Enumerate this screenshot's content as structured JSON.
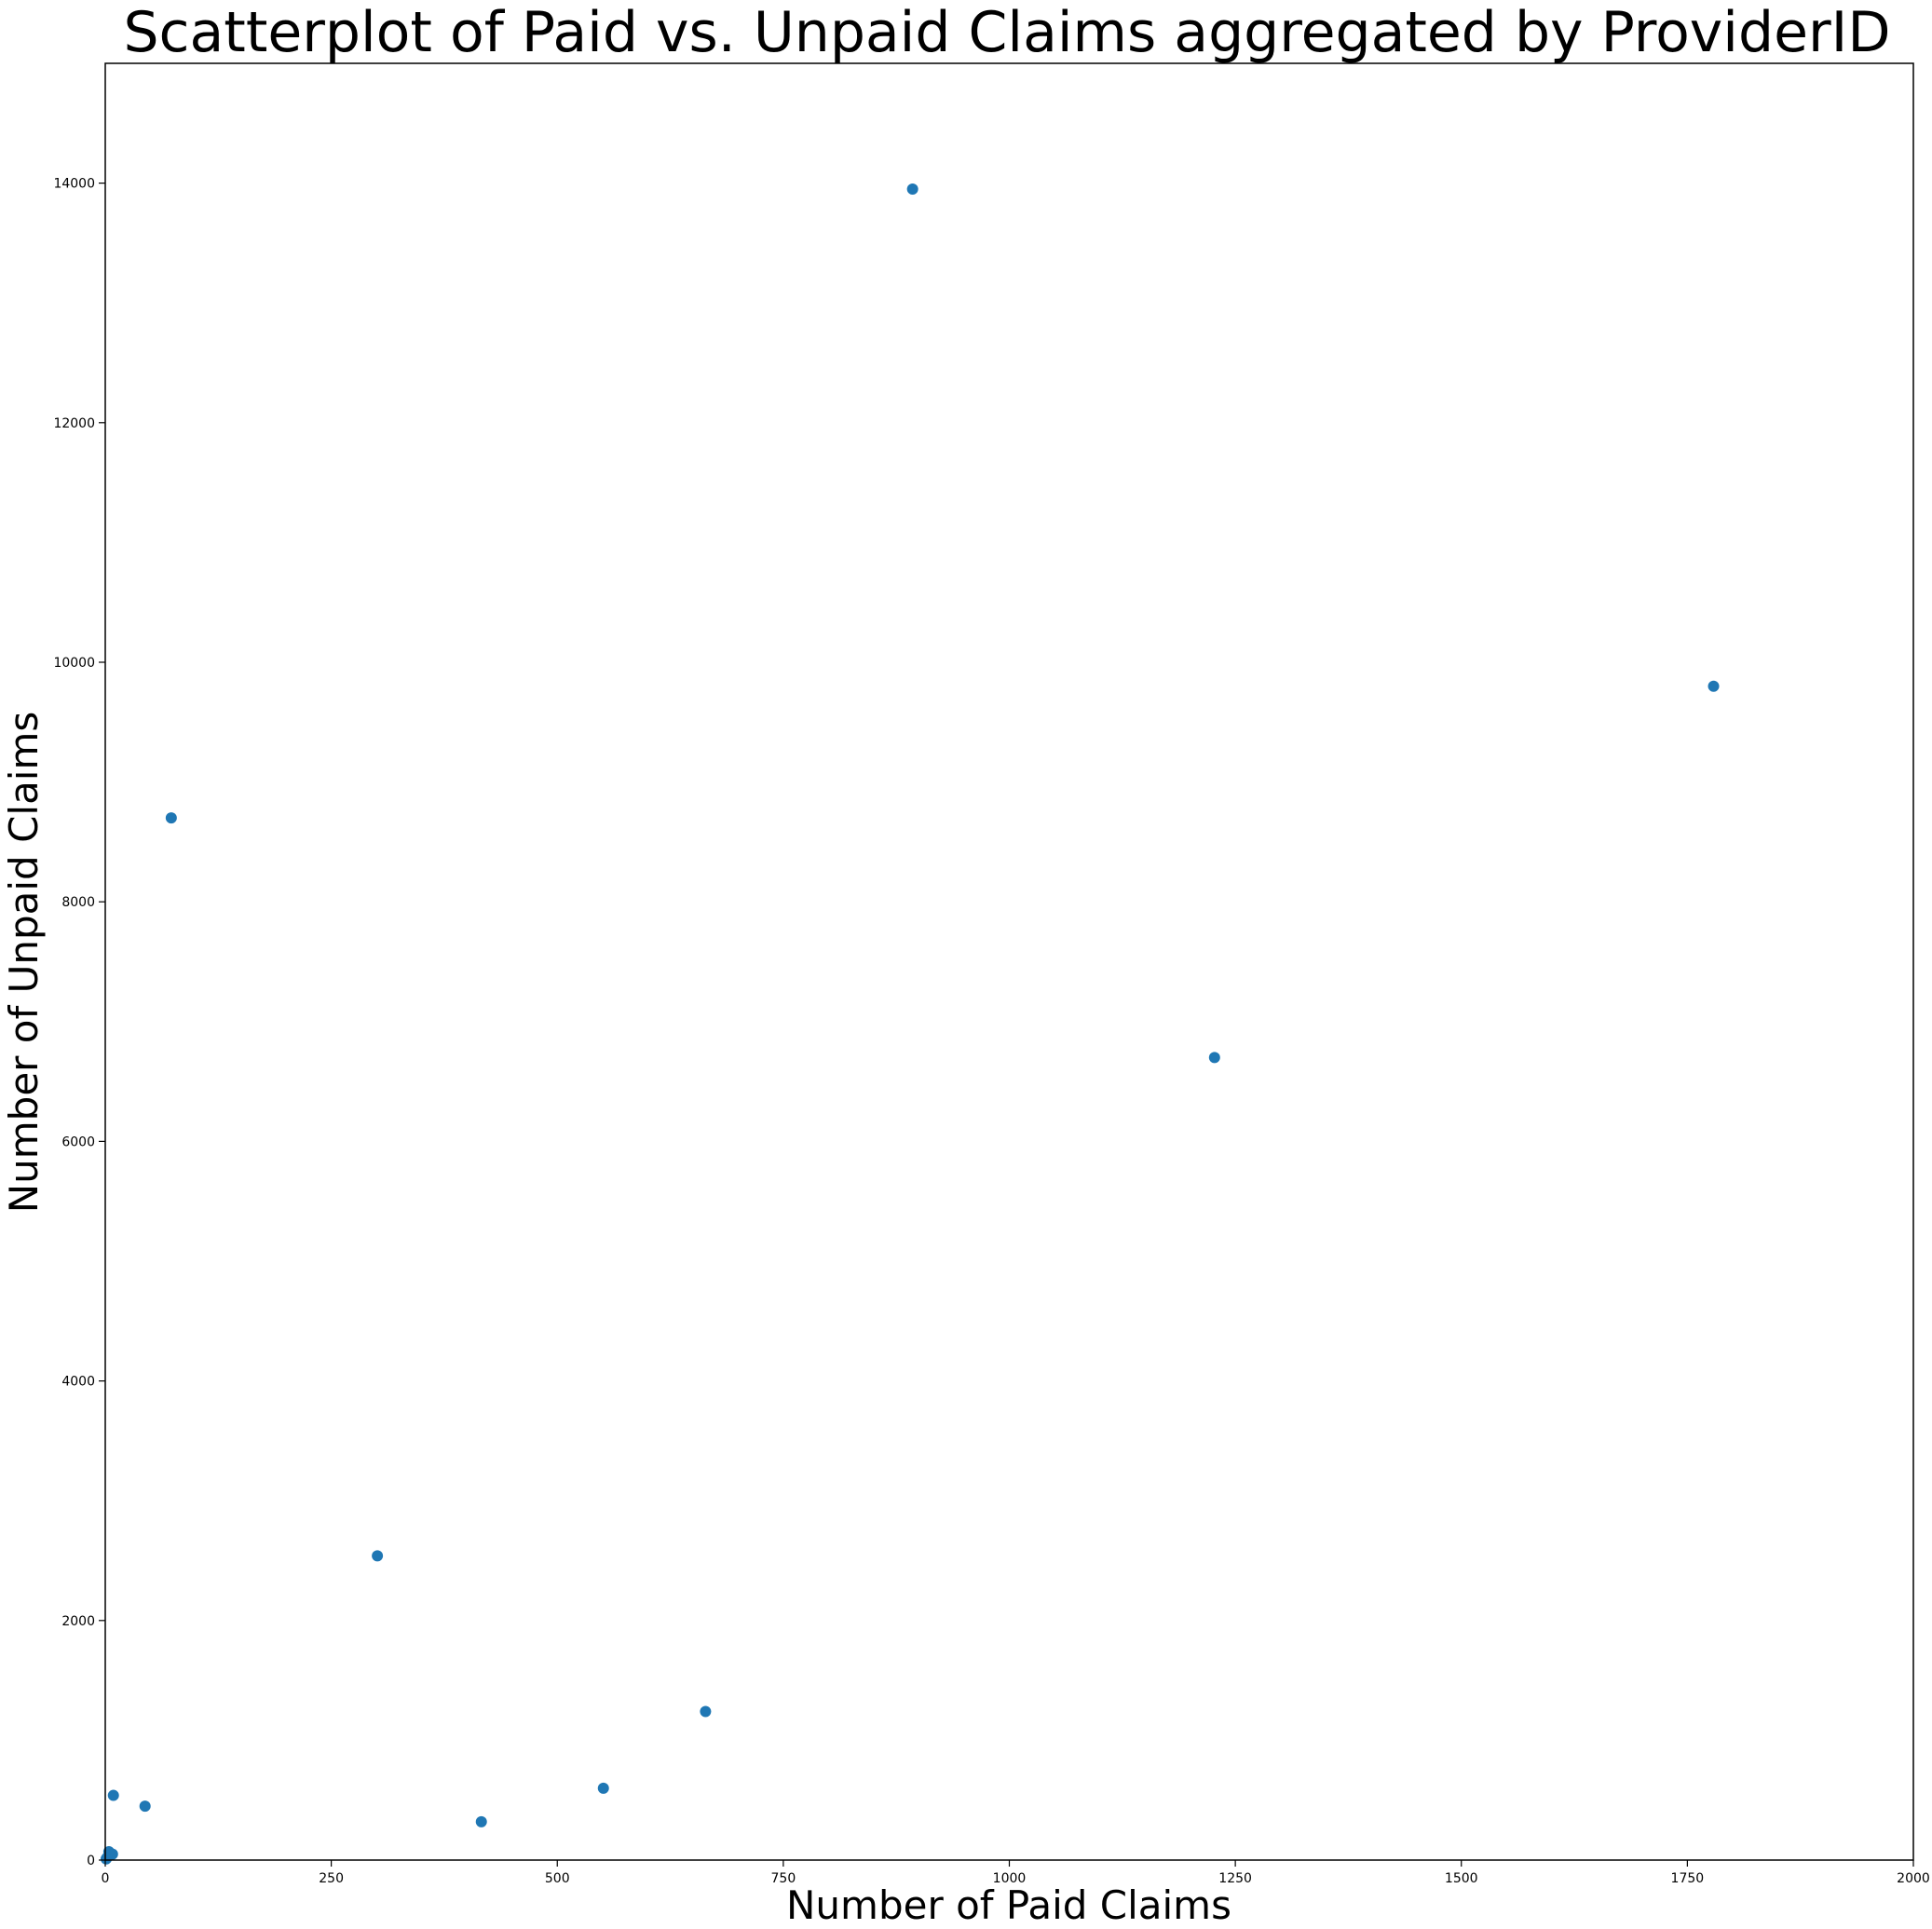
{
  "chart_data": {
    "type": "scatter",
    "title": "Scatterplot of Paid vs. Unpaid Claims aggregated by ProviderID",
    "xlabel": "Number of Paid Claims",
    "ylabel": "Number of Unpaid Claims",
    "xlim": [
      0,
      2000
    ],
    "ylim": [
      0,
      15000
    ],
    "xticks": [
      0,
      250,
      500,
      750,
      1000,
      1250,
      1500,
      1750,
      2000
    ],
    "yticks": [
      0,
      2000,
      4000,
      6000,
      8000,
      10000,
      12000,
      14000
    ],
    "grid": false,
    "legend": "none",
    "marker_color": "#1f77b4",
    "points": [
      {
        "x": 893,
        "y": 13950
      },
      {
        "x": 1779,
        "y": 9800
      },
      {
        "x": 73,
        "y": 8700
      },
      {
        "x": 1227,
        "y": 6700
      },
      {
        "x": 301,
        "y": 2540
      },
      {
        "x": 664,
        "y": 1240
      },
      {
        "x": 551,
        "y": 600
      },
      {
        "x": 9,
        "y": 540
      },
      {
        "x": 44,
        "y": 450
      },
      {
        "x": 416,
        "y": 320
      },
      {
        "x": 4,
        "y": 70
      },
      {
        "x": 8,
        "y": 50
      },
      {
        "x": 2,
        "y": 20
      },
      {
        "x": 1,
        "y": 10
      }
    ]
  }
}
